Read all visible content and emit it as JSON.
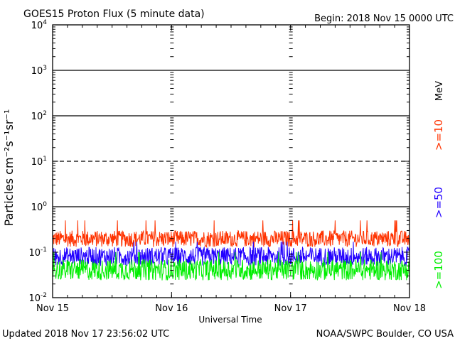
{
  "chart_data": {
    "type": "line",
    "title": "GOES15 Proton Flux (5 minute data)",
    "begin": "Begin: 2018 Nov 15 0000 UTC",
    "xlabel": "Universal Time",
    "ylabel": "Particles cm⁻²s⁻¹sr⁻¹",
    "y_scale": "log",
    "ylim": [
      0.01,
      10000
    ],
    "y_ticks": [
      {
        "base": "10",
        "exp": "4",
        "value": 10000
      },
      {
        "base": "10",
        "exp": "3",
        "value": 1000
      },
      {
        "base": "10",
        "exp": "2",
        "value": 100
      },
      {
        "base": "10",
        "exp": "1",
        "value": 10
      },
      {
        "base": "10",
        "exp": "0",
        "value": 1
      },
      {
        "base": "10",
        "exp": "-1",
        "value": 0.1
      },
      {
        "base": "10",
        "exp": "-2",
        "value": 0.01
      }
    ],
    "x_ticks": [
      "Nov 15",
      "Nov 16",
      "Nov 17",
      "Nov 18"
    ],
    "xlim": [
      0,
      3
    ],
    "threshold_lines": [
      {
        "value": 1000,
        "style": "solid"
      },
      {
        "value": 100,
        "style": "solid"
      },
      {
        "value": 10,
        "style": "dashed"
      },
      {
        "value": 1,
        "style": "solid"
      }
    ],
    "grid": "daily dashed verticals",
    "legend_unit": "MeV",
    "series": [
      {
        "name": ">=10",
        "color": "#ff3300",
        "min": 0.13,
        "max": 0.3,
        "peak": 0.5
      },
      {
        "name": ">=50",
        "color": "#2200ff",
        "min": 0.05,
        "max": 0.13,
        "peak": 0.17
      },
      {
        "name": ">=100",
        "color": "#00ee00",
        "min": 0.024,
        "max": 0.07,
        "peak": 0.1
      }
    ]
  },
  "footer": {
    "updated": "Updated 2018 Nov 17 23:56:02 UTC",
    "credit": "NOAA/SWPC Boulder, CO USA"
  }
}
